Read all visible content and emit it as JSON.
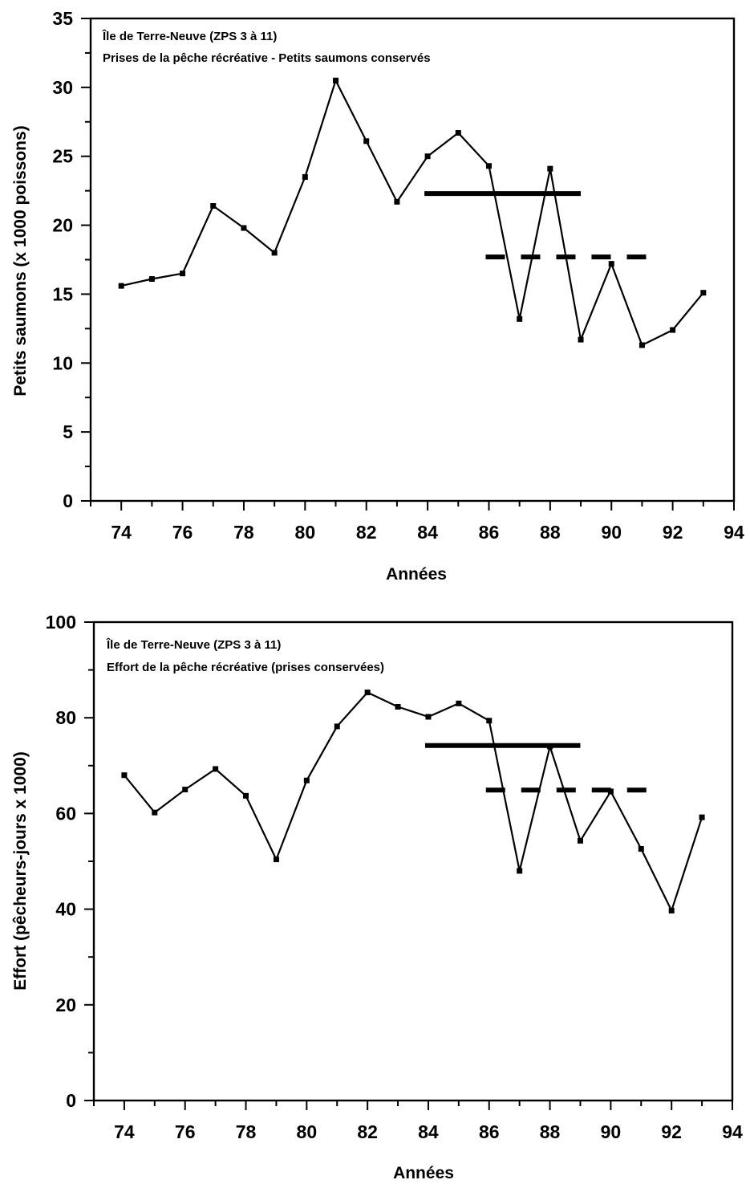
{
  "chart_data": [
    {
      "type": "line",
      "title": "Île de Terre-Neuve (ZPS 3 à 11)",
      "subtitle": "Prises de la pêche récréative - Petits saumons conservés",
      "xlabel": "Années",
      "ylabel": "Petits saumons (x 1000 poissons)",
      "xlim": [
        73,
        94
      ],
      "ylim": [
        0,
        35
      ],
      "xticks": [
        74,
        76,
        78,
        80,
        82,
        84,
        86,
        88,
        90,
        92,
        94
      ],
      "yticks": [
        0,
        5,
        10,
        15,
        20,
        25,
        30,
        35
      ],
      "grid": false,
      "x": [
        74,
        75,
        76,
        77,
        78,
        79,
        80,
        81,
        82,
        83,
        84,
        85,
        86,
        87,
        88,
        89,
        90,
        91,
        92,
        93
      ],
      "series": [
        {
          "values": [
            15.6,
            16.1,
            16.5,
            21.4,
            19.8,
            18.0,
            23.5,
            30.5,
            26.1,
            21.7,
            25.0,
            26.7,
            24.3,
            13.2,
            24.1,
            11.7,
            17.2,
            11.3,
            12.4,
            15.1
          ]
        }
      ],
      "reference_lines": [
        {
          "style": "solid",
          "x_start": 84,
          "x_end": 89,
          "y": 22.3
        },
        {
          "style": "dashed",
          "x_start": 86,
          "x_end": 91,
          "y": 17.7
        }
      ]
    },
    {
      "type": "line",
      "title": "Île de Terre-Neuve (ZPS 3 à 11)",
      "subtitle": "Effort de la pêche récréative (prises conservées)",
      "xlabel": "Années",
      "ylabel": "Effort (pêcheurs-jours x 1000)",
      "xlim": [
        73,
        94
      ],
      "ylim": [
        0,
        100
      ],
      "xticks": [
        74,
        76,
        78,
        80,
        82,
        84,
        86,
        88,
        90,
        92,
        94
      ],
      "yticks": [
        0,
        20,
        40,
        60,
        80,
        100
      ],
      "grid": false,
      "x": [
        74,
        75,
        76,
        77,
        78,
        79,
        80,
        81,
        82,
        83,
        84,
        85,
        86,
        87,
        88,
        89,
        90,
        91,
        92,
        93
      ],
      "series": [
        {
          "values": [
            68.0,
            60.2,
            65.0,
            69.3,
            63.7,
            50.4,
            66.9,
            78.2,
            85.3,
            82.3,
            80.2,
            83.0,
            79.4,
            48.0,
            74.0,
            54.3,
            64.6,
            52.6,
            39.7,
            59.2
          ]
        }
      ],
      "reference_lines": [
        {
          "style": "solid",
          "x_start": 84,
          "x_end": 89,
          "y": 74.2
        },
        {
          "style": "dashed",
          "x_start": 86,
          "x_end": 91,
          "y": 64.9
        }
      ]
    }
  ]
}
